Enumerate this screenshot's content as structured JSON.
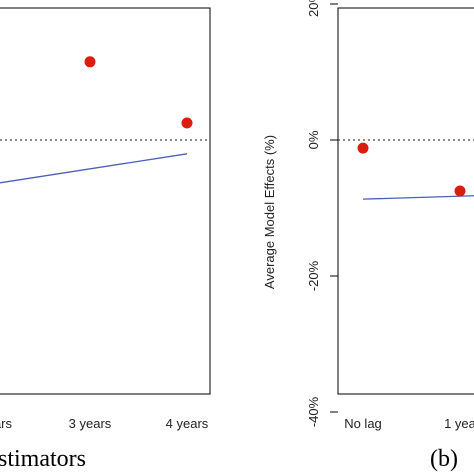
{
  "chart_data": [
    {
      "type": "scatter",
      "panel": "left",
      "x_categories": [
        "",
        "",
        "3 years",
        "4 years"
      ],
      "y_range": [
        -40,
        25
      ],
      "reference_line_y": 0,
      "points": [
        {
          "x": "3 years",
          "y": 11.5
        },
        {
          "x": "4 years",
          "y": 2.5
        }
      ],
      "trend_line": {
        "from_y": -6,
        "to_y": -1
      },
      "caption": "stimators",
      "point_color": "#d91e0f",
      "line_color": "#4a5fb8"
    },
    {
      "type": "scatter",
      "panel": "right",
      "x_categories": [
        "No lag",
        "1 yea"
      ],
      "ylabel": "Average Model Effects (%)",
      "yticks": [
        "20%",
        "0%",
        "-20%",
        "-40%"
      ],
      "ytick_values": [
        20,
        0,
        -20,
        -40
      ],
      "y_range": [
        -42,
        22
      ],
      "reference_line_y": 0,
      "points": [
        {
          "x": "No lag",
          "y": -1.2
        },
        {
          "x": "1 yea",
          "y": -7.5
        }
      ],
      "trend_line": {
        "from_y": -8.7,
        "to_y": -8.2
      },
      "caption": "(b)",
      "point_color": "#d91e0f",
      "line_color": "#4a5fb8"
    }
  ]
}
